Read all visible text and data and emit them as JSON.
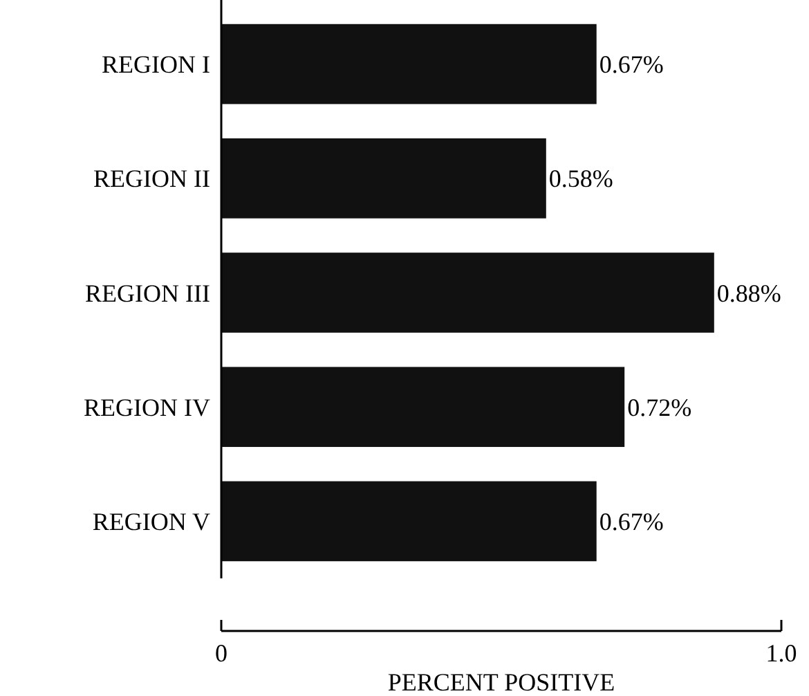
{
  "chart_data": {
    "type": "bar",
    "orientation": "horizontal",
    "xlabel": "PERCENT POSITIVE",
    "categories": [
      "REGION I",
      "REGION II",
      "REGION III",
      "REGION IV",
      "REGION V"
    ],
    "values": [
      0.67,
      0.58,
      0.88,
      0.72,
      0.67
    ],
    "value_labels": [
      "0.67%",
      "0.58%",
      "0.88%",
      "0.72%",
      "0.67%"
    ],
    "color": "#111111",
    "xlim": [
      0,
      1
    ],
    "xticks": [
      0,
      {
        "value": 1,
        "label": "1.0"
      }
    ],
    "grid": false
  }
}
